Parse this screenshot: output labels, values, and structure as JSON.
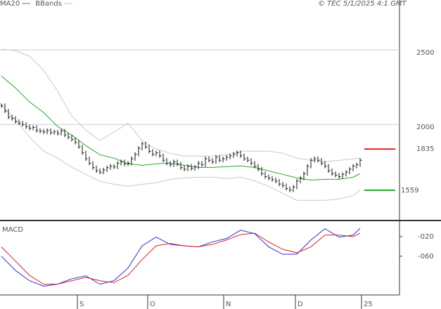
{
  "chart_data": [
    {
      "type": "ohlc",
      "title": "© TEC 5/1/2025 4:1 GMT",
      "xlim": [
        -0.4,
        113.2
      ],
      "ylim": [
        1365,
        2835
      ],
      "yticks": [
        2000,
        2500
      ],
      "grid": true,
      "xticks": [
        {
          "value": 21.6,
          "label": "S"
        },
        {
          "value": 41.6,
          "label": "O"
        },
        {
          "value": 63.2,
          "label": "N"
        },
        {
          "value": 83.6,
          "label": "D"
        },
        {
          "value": 102.4,
          "label": "25"
        }
      ],
      "close": [
        2127,
        2090,
        2050,
        2040,
        2020,
        2010,
        2000,
        1985,
        1975,
        1980,
        1960,
        1955,
        1950,
        1960,
        1945,
        1950,
        1940,
        1955,
        1930,
        1915,
        1900,
        1880,
        1850,
        1810,
        1770,
        1740,
        1710,
        1690,
        1680,
        1695,
        1710,
        1720,
        1715,
        1740,
        1750,
        1735,
        1740,
        1770,
        1800,
        1840,
        1870,
        1850,
        1820,
        1800,
        1810,
        1790,
        1760,
        1740,
        1730,
        1750,
        1735,
        1710,
        1700,
        1720,
        1705,
        1715,
        1740,
        1730,
        1770,
        1760,
        1750,
        1780,
        1760,
        1770,
        1780,
        1790,
        1800,
        1810,
        1790,
        1770,
        1760,
        1740,
        1720,
        1700,
        1670,
        1650,
        1640,
        1630,
        1620,
        1600,
        1590,
        1570,
        1560,
        1580,
        1620,
        1640,
        1670,
        1720,
        1760,
        1770,
        1760,
        1740,
        1720,
        1690,
        1670,
        1660,
        1650,
        1665,
        1680,
        1700,
        1720,
        1730,
        1760
      ],
      "series": [
        {
          "name": "MA20",
          "color": "#22aa22",
          "x": [
            0,
            4,
            8,
            12,
            16,
            20,
            24,
            28,
            32,
            36,
            40,
            44,
            48,
            52,
            56,
            60,
            64,
            68,
            72,
            76,
            80,
            84,
            88,
            92,
            96,
            100,
            102
          ],
          "values": [
            2325,
            2245,
            2151,
            2080,
            1986,
            1929,
            1858,
            1797,
            1774,
            1736,
            1726,
            1736,
            1741,
            1726,
            1712,
            1712,
            1717,
            1722,
            1712,
            1689,
            1665,
            1641,
            1627,
            1632,
            1632,
            1646,
            1670
          ]
        },
        {
          "name": "BBands",
          "color": "#c8c8c8",
          "x": [
            0,
            4,
            8,
            12,
            16,
            20,
            24,
            28,
            32,
            36,
            40,
            44,
            48,
            52,
            56,
            60,
            64,
            68,
            72,
            76,
            80,
            84,
            88,
            92,
            96,
            100,
            102
          ],
          "values": [
            2505,
            2495,
            2458,
            2363,
            2222,
            2057,
            1962,
            1892,
            1948,
            2009,
            1892,
            1835,
            1807,
            1788,
            1788,
            1788,
            1797,
            1821,
            1821,
            1821,
            1807,
            1774,
            1759,
            1750,
            1759,
            1769,
            1774
          ],
          "lower": [
            2127,
            2033,
            1915,
            1821,
            1774,
            1712,
            1665,
            1618,
            1599,
            1585,
            1599,
            1608,
            1632,
            1641,
            1646,
            1646,
            1637,
            1646,
            1622,
            1585,
            1538,
            1491,
            1491,
            1491,
            1500,
            1523,
            1561
          ]
        }
      ],
      "markers": [
        {
          "value": 1835,
          "color": "#dd2222"
        },
        {
          "value": 1559,
          "color": "#22aa22"
        }
      ]
    },
    {
      "type": "line",
      "title": "MACD",
      "xlim": [
        -0.4,
        113.2
      ],
      "ylim": [
        -139,
        7
      ],
      "yticks": [
        {
          "value": -20,
          "label": "-020"
        },
        {
          "value": -60,
          "label": "-060"
        }
      ],
      "series": [
        {
          "color": "#2233dd",
          "x": [
            0,
            4,
            8,
            12,
            16,
            20,
            24,
            28,
            32,
            36,
            40,
            44,
            48,
            52,
            56,
            60,
            64,
            68,
            72,
            76,
            80,
            84,
            88,
            92,
            96,
            100,
            102
          ],
          "values": [
            -60,
            -89,
            -110,
            -121,
            -117,
            -106,
            -100,
            -117,
            -110,
            -84,
            -39,
            -21,
            -36,
            -39,
            -41,
            -31,
            -24,
            -7,
            -14,
            -41,
            -56,
            -56,
            -27,
            -4,
            -21,
            -17,
            -3
          ]
        },
        {
          "color": "#dd2222",
          "x": [
            0,
            4,
            8,
            12,
            16,
            20,
            24,
            28,
            32,
            36,
            40,
            44,
            48,
            52,
            56,
            60,
            64,
            68,
            72,
            76,
            80,
            84,
            88,
            92,
            96,
            100,
            102
          ],
          "values": [
            -41,
            -70,
            -99,
            -117,
            -117,
            -110,
            -103,
            -110,
            -114,
            -99,
            -67,
            -39,
            -34,
            -39,
            -41,
            -36,
            -27,
            -16,
            -13,
            -31,
            -46,
            -53,
            -41,
            -17,
            -17,
            -20,
            -13
          ]
        }
      ]
    }
  ]
}
